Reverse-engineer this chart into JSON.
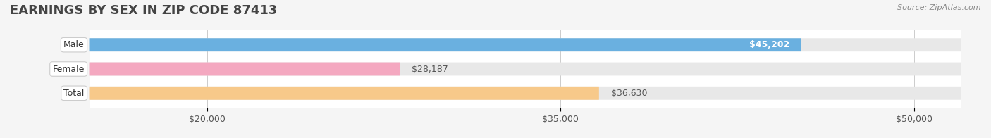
{
  "title": "EARNINGS BY SEX IN ZIP CODE 87413",
  "source": "Source: ZipAtlas.com",
  "categories": [
    "Male",
    "Female",
    "Total"
  ],
  "values": [
    45202,
    28187,
    36630
  ],
  "bar_colors": [
    "#6ab0e0",
    "#f4a8c0",
    "#f7c98a"
  ],
  "bar_bg_color": "#e8e8e8",
  "label_colors": [
    "#ffffff",
    "#555555",
    "#555555"
  ],
  "value_labels": [
    "$45,202",
    "$28,187",
    "$36,630"
  ],
  "xlim": [
    15000,
    52000
  ],
  "xticks": [
    20000,
    35000,
    50000
  ],
  "xtick_labels": [
    "$20,000",
    "$35,000",
    "$50,000"
  ],
  "title_fontsize": 13,
  "tick_fontsize": 9,
  "bar_label_fontsize": 9,
  "value_label_fontsize": 9,
  "category_fontsize": 9,
  "bar_height": 0.55,
  "bg_color": "#f5f5f5",
  "plot_bg_color": "#ffffff"
}
